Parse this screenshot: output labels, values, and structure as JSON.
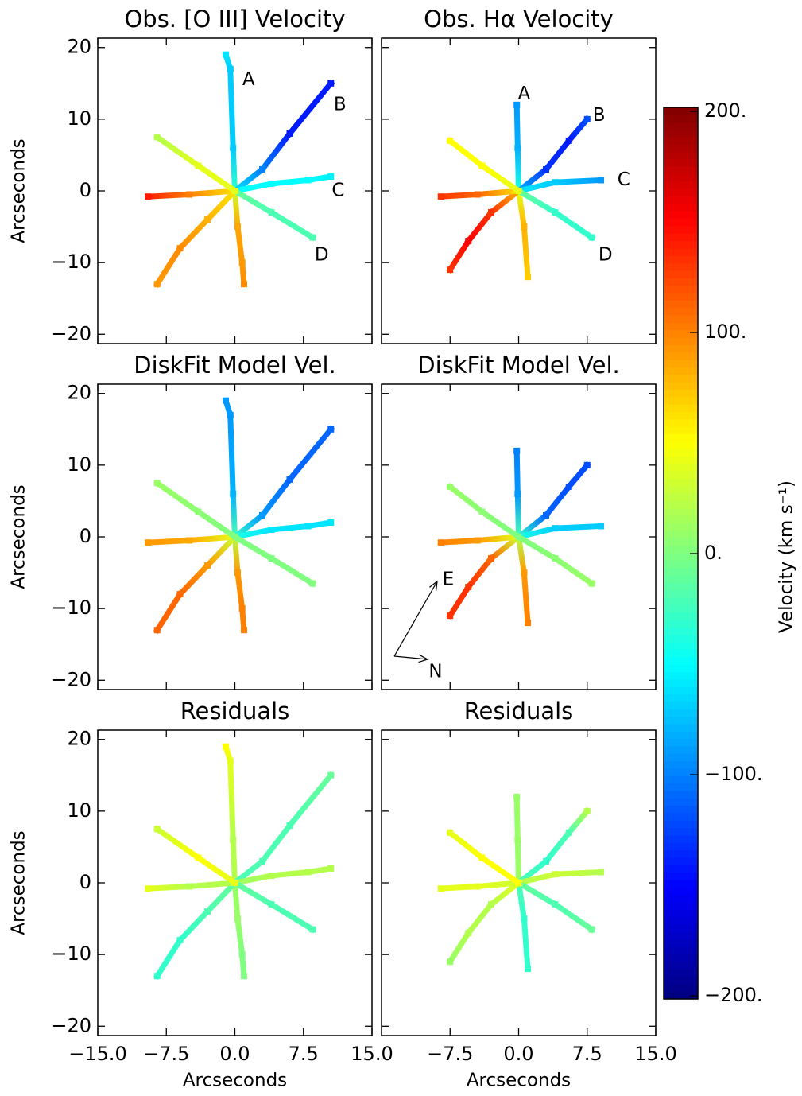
{
  "chart_data": [
    {
      "type": "slit-map",
      "title": "Obs. [O III] Velocity",
      "ylabel": "Arcseconds",
      "xlim": [
        -15,
        15
      ],
      "ylim": [
        -21.3,
        21.3
      ],
      "xticks": [
        -15,
        -7.5,
        0,
        7.5,
        15
      ],
      "yticks": [
        {
          "value": -20,
          "label": "−20"
        },
        {
          "value": -10,
          "label": "−10"
        },
        0,
        10,
        20
      ],
      "labels": [
        "A",
        "B",
        "C",
        "D"
      ],
      "slits": [
        {
          "x": [
            0,
            -0.2,
            -0.5,
            -1
          ],
          "y": [
            0,
            6,
            17,
            19
          ],
          "values": [
            -30,
            -70,
            -70,
            -60
          ]
        },
        {
          "x": [
            0,
            0.3,
            0.8,
            1
          ],
          "y": [
            0,
            -5,
            -10,
            -13
          ],
          "values": [
            30,
            85,
            90,
            95
          ]
        },
        {
          "x": [
            0,
            3,
            6,
            10.5
          ],
          "y": [
            0,
            3,
            8,
            15
          ],
          "values": [
            -60,
            -100,
            -140,
            -140
          ]
        },
        {
          "x": [
            0,
            -3,
            -6,
            -8.5
          ],
          "y": [
            0,
            -4,
            -8,
            -13
          ],
          "values": [
            60,
            80,
            95,
            90
          ]
        },
        {
          "x": [
            0,
            4,
            8,
            10.5
          ],
          "y": [
            0,
            1,
            1.5,
            2
          ],
          "values": [
            -50,
            -50,
            -50,
            -55
          ]
        },
        {
          "x": [
            0,
            -5,
            -9.5
          ],
          "y": [
            0,
            -0.5,
            -0.8
          ],
          "values": [
            60,
            100,
            140
          ]
        },
        {
          "x": [
            0,
            4,
            8.5
          ],
          "y": [
            0,
            -3,
            -6.5
          ],
          "values": [
            -10,
            -20,
            -20
          ]
        },
        {
          "x": [
            0,
            -4,
            -8.5
          ],
          "y": [
            0,
            3.5,
            7.5
          ],
          "values": [
            40,
            40,
            20
          ]
        }
      ]
    },
    {
      "type": "slit-map",
      "title": "Obs. Hα Velocity",
      "xlim": [
        -15,
        15
      ],
      "ylim": [
        -21.3,
        21.3
      ],
      "xticks": [
        -15,
        -7.5,
        0,
        7.5,
        15
      ],
      "yticks": [
        -20,
        -10,
        0,
        10,
        20
      ],
      "labels": [
        "A",
        "B",
        "C",
        "D"
      ],
      "slits": [
        {
          "x": [
            0,
            -0.1,
            -0.2
          ],
          "y": [
            0,
            6,
            12
          ],
          "values": [
            -40,
            -80,
            -90
          ]
        },
        {
          "x": [
            0,
            0.6,
            1
          ],
          "y": [
            0,
            -5,
            -12
          ],
          "values": [
            40,
            80,
            70
          ]
        },
        {
          "x": [
            0,
            3,
            5.5,
            7.5
          ],
          "y": [
            0,
            3,
            7,
            10
          ],
          "values": [
            -80,
            -130,
            -140,
            -120
          ]
        },
        {
          "x": [
            0,
            -3,
            -5.5,
            -7.5
          ],
          "y": [
            0,
            -3,
            -7,
            -11
          ],
          "values": [
            80,
            130,
            150,
            130
          ]
        },
        {
          "x": [
            0,
            4,
            9
          ],
          "y": [
            0,
            1.2,
            1.5
          ],
          "values": [
            -60,
            -70,
            -90
          ]
        },
        {
          "x": [
            0,
            -4.5,
            -8.5
          ],
          "y": [
            0,
            -0.5,
            -0.8
          ],
          "values": [
            60,
            110,
            130
          ]
        },
        {
          "x": [
            0,
            4,
            8
          ],
          "y": [
            0,
            -3,
            -6.5
          ],
          "values": [
            -10,
            -30,
            -30
          ]
        },
        {
          "x": [
            0,
            -4,
            -7.5
          ],
          "y": [
            0,
            3.5,
            7
          ],
          "values": [
            40,
            50,
            50
          ]
        }
      ]
    },
    {
      "type": "slit-map",
      "title": "DiskFit Model Vel.",
      "ylabel": "Arcseconds",
      "xlim": [
        -15,
        15
      ],
      "ylim": [
        -21.3,
        21.3
      ],
      "xticks": [
        -15,
        -7.5,
        0,
        7.5,
        15
      ],
      "yticks": [
        {
          "value": -20,
          "label": "−20"
        },
        {
          "value": -10,
          "label": "−10"
        },
        0,
        10,
        20
      ],
      "slits": [
        {
          "x": [
            0,
            -0.2,
            -0.5,
            -1
          ],
          "y": [
            0,
            6,
            17,
            19
          ],
          "values": [
            -20,
            -80,
            -90,
            -90
          ]
        },
        {
          "x": [
            0,
            0.3,
            0.8,
            1
          ],
          "y": [
            0,
            -5,
            -10,
            -13
          ],
          "values": [
            20,
            90,
            100,
            100
          ]
        },
        {
          "x": [
            0,
            3,
            6,
            10.5
          ],
          "y": [
            0,
            3,
            8,
            15
          ],
          "values": [
            -30,
            -90,
            -110,
            -110
          ]
        },
        {
          "x": [
            0,
            -3,
            -6,
            -8.5
          ],
          "y": [
            0,
            -4,
            -8,
            -13
          ],
          "values": [
            30,
            90,
            110,
            110
          ]
        },
        {
          "x": [
            0,
            4,
            8,
            10.5
          ],
          "y": [
            0,
            1,
            1.5,
            2
          ],
          "values": [
            -40,
            -60,
            -60,
            -60
          ]
        },
        {
          "x": [
            0,
            -5,
            -9.5
          ],
          "y": [
            0,
            -0.5,
            -0.8
          ],
          "values": [
            40,
            85,
            90
          ]
        },
        {
          "x": [
            0,
            4,
            8.5
          ],
          "y": [
            0,
            -3,
            -6.5
          ],
          "values": [
            0,
            0,
            0
          ]
        },
        {
          "x": [
            0,
            -4,
            -8.5
          ],
          "y": [
            0,
            3.5,
            7.5
          ],
          "values": [
            0,
            5,
            10
          ]
        }
      ]
    },
    {
      "type": "slit-map",
      "title": "DiskFit Model Vel.",
      "xlim": [
        -15,
        15
      ],
      "ylim": [
        -21.3,
        21.3
      ],
      "xticks": [
        -15,
        -7.5,
        0,
        7.5,
        15
      ],
      "yticks": [
        -20,
        -10,
        0,
        10,
        20
      ],
      "compass_labels": [
        "E",
        "N"
      ],
      "slits": [
        {
          "x": [
            0,
            -0.1,
            -0.2
          ],
          "y": [
            0,
            6,
            12
          ],
          "values": [
            -20,
            -90,
            -100
          ]
        },
        {
          "x": [
            0,
            0.6,
            1
          ],
          "y": [
            0,
            -5,
            -12
          ],
          "values": [
            20,
            90,
            100
          ]
        },
        {
          "x": [
            0,
            3,
            5.5,
            7.5
          ],
          "y": [
            0,
            3,
            7,
            10
          ],
          "values": [
            -30,
            -110,
            -120,
            -120
          ]
        },
        {
          "x": [
            0,
            -3,
            -5.5,
            -7.5
          ],
          "y": [
            0,
            -3,
            -7,
            -11
          ],
          "values": [
            30,
            110,
            130,
            130
          ]
        },
        {
          "x": [
            0,
            4,
            9
          ],
          "y": [
            0,
            1.2,
            1.5
          ],
          "values": [
            -40,
            -70,
            -70
          ]
        },
        {
          "x": [
            0,
            -4.5,
            -8.5
          ],
          "y": [
            0,
            -0.5,
            -0.8
          ],
          "values": [
            40,
            90,
            100
          ]
        },
        {
          "x": [
            0,
            4,
            8
          ],
          "y": [
            0,
            -3,
            -6.5
          ],
          "values": [
            0,
            5,
            10
          ]
        },
        {
          "x": [
            0,
            -4,
            -7.5
          ],
          "y": [
            0,
            3.5,
            7
          ],
          "values": [
            0,
            5,
            10
          ]
        }
      ]
    },
    {
      "type": "slit-map",
      "title": "Residuals",
      "ylabel": "Arcseconds",
      "xlabel": "Arcseconds",
      "xlim": [
        -15,
        15
      ],
      "ylim": [
        -21.3,
        21.3
      ],
      "xticks": [
        {
          "value": -15,
          "label": "−15.0"
        },
        {
          "value": -7.5,
          "label": "−7.5"
        },
        {
          "value": 0,
          "label": "0.0"
        },
        {
          "value": 7.5,
          "label": "7.5"
        },
        {
          "value": 15,
          "label": "15.0"
        }
      ],
      "yticks": [
        {
          "value": -20,
          "label": "−20"
        },
        {
          "value": -10,
          "label": "−10"
        },
        0,
        10,
        20
      ],
      "slits": [
        {
          "x": [
            0,
            -0.2,
            -0.5,
            -1
          ],
          "y": [
            0,
            6,
            17,
            19
          ],
          "values": [
            20,
            20,
            40,
            50
          ]
        },
        {
          "x": [
            0,
            0.3,
            0.8,
            1
          ],
          "y": [
            0,
            -5,
            -10,
            -13
          ],
          "values": [
            10,
            10,
            0,
            0
          ]
        },
        {
          "x": [
            0,
            3,
            6,
            10.5
          ],
          "y": [
            0,
            3,
            8,
            15
          ],
          "values": [
            -20,
            -20,
            -20,
            -10
          ]
        },
        {
          "x": [
            0,
            -3,
            -6,
            -8.5
          ],
          "y": [
            0,
            -4,
            -8,
            -13
          ],
          "values": [
            -10,
            -20,
            -30,
            -30
          ]
        },
        {
          "x": [
            0,
            4,
            8,
            10.5
          ],
          "y": [
            0,
            1,
            1.5,
            2
          ],
          "values": [
            10,
            20,
            20,
            20
          ]
        },
        {
          "x": [
            0,
            -5,
            -9.5
          ],
          "y": [
            0,
            -0.5,
            -0.8
          ],
          "values": [
            20,
            20,
            40
          ]
        },
        {
          "x": [
            0,
            4,
            8.5
          ],
          "y": [
            0,
            -3,
            -6.5
          ],
          "values": [
            -10,
            -20,
            -20
          ]
        },
        {
          "x": [
            0,
            -4,
            -8.5
          ],
          "y": [
            0,
            3.5,
            7.5
          ],
          "values": [
            40,
            50,
            30
          ]
        }
      ]
    },
    {
      "type": "slit-map",
      "title": "Residuals",
      "xlabel": "Arcseconds",
      "xlim": [
        -15,
        15
      ],
      "ylim": [
        -21.3,
        21.3
      ],
      "xticks": [
        {
          "value": -7.5,
          "label": "−7.5"
        },
        {
          "value": 0,
          "label": "0.0"
        },
        {
          "value": 7.5,
          "label": "7.5"
        },
        {
          "value": 15,
          "label": "15.0"
        }
      ],
      "yticks": [
        -20,
        -10,
        0,
        10,
        20
      ],
      "slits": [
        {
          "x": [
            0,
            -0.1,
            -0.2
          ],
          "y": [
            0,
            6,
            12
          ],
          "values": [
            10,
            10,
            10
          ]
        },
        {
          "x": [
            0,
            0.6,
            1
          ],
          "y": [
            0,
            -5,
            -12
          ],
          "values": [
            -20,
            -30,
            -30
          ]
        },
        {
          "x": [
            0,
            3,
            5.5,
            7.5
          ],
          "y": [
            0,
            3,
            7,
            10
          ],
          "values": [
            -20,
            -30,
            -20,
            20
          ]
        },
        {
          "x": [
            0,
            -3,
            -5.5,
            -7.5
          ],
          "y": [
            0,
            -3,
            -7,
            -11
          ],
          "values": [
            40,
            20,
            20,
            10
          ]
        },
        {
          "x": [
            0,
            4,
            9
          ],
          "y": [
            0,
            1.2,
            1.5
          ],
          "values": [
            20,
            30,
            20
          ]
        },
        {
          "x": [
            0,
            -4.5,
            -8.5
          ],
          "y": [
            0,
            -0.5,
            -0.8
          ],
          "values": [
            30,
            40,
            40
          ]
        },
        {
          "x": [
            0,
            4,
            8
          ],
          "y": [
            0,
            -3,
            -6.5
          ],
          "values": [
            -10,
            -20,
            -10
          ]
        },
        {
          "x": [
            0,
            -4,
            -7.5
          ],
          "y": [
            0,
            3.5,
            7
          ],
          "values": [
            50,
            50,
            40
          ]
        }
      ]
    },
    {
      "type": "colorbar",
      "label": "Velocity (km s⁻¹)",
      "clim": [
        -200,
        200
      ],
      "ticks": [
        {
          "value": 200,
          "label": "200."
        },
        {
          "value": 100,
          "label": "100."
        },
        {
          "value": 0,
          "label": "0."
        },
        {
          "value": -100,
          "label": "−100."
        },
        {
          "value": -200,
          "label": "−200."
        }
      ]
    }
  ]
}
